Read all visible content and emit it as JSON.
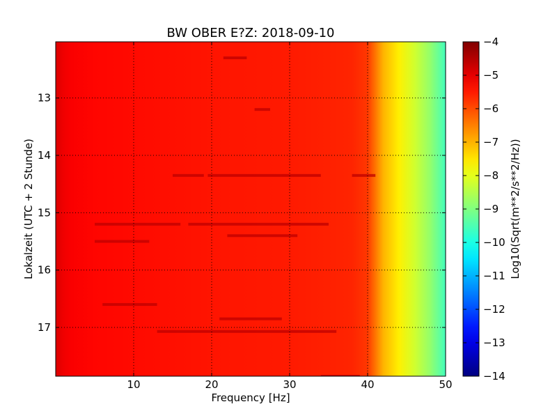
{
  "chart_data": {
    "type": "heatmap",
    "title": "BW OBER E?Z: 2018-09-10",
    "xlabel": "Frequency [Hz]",
    "ylabel": "Lokalzeit (UTC + 2 Stunde)",
    "xlim": [
      0,
      50
    ],
    "ylim": [
      12.02,
      17.85
    ],
    "y_inverted": true,
    "grid": true,
    "colormap": "jet",
    "x_ticks": [
      10,
      20,
      30,
      40,
      50
    ],
    "y_ticks": [
      13,
      14,
      15,
      16,
      17
    ],
    "colorbar": {
      "label": "Log10(Sqrt(m**2/s**2/Hz))",
      "vmin": -14,
      "vmax": -4,
      "ticks": [
        -4,
        -5,
        -6,
        -7,
        -8,
        -9,
        -10,
        -11,
        -12,
        -13,
        -14
      ]
    },
    "frequency_profile": {
      "x": [
        0,
        1,
        2,
        5,
        10,
        20,
        30,
        38,
        40,
        41,
        42,
        44,
        46,
        48,
        50
      ],
      "values": [
        -4.9,
        -5.1,
        -5.2,
        -5.3,
        -5.35,
        -5.45,
        -5.5,
        -5.6,
        -5.8,
        -6.4,
        -7.0,
        -7.6,
        -8.2,
        -8.8,
        -9.6
      ]
    },
    "dark_bands": [
      {
        "time": 12.3,
        "x_start": 21.5,
        "x_end": 24.5
      },
      {
        "time": 13.2,
        "x_start": 25.5,
        "x_end": 27.5
      },
      {
        "time": 14.35,
        "x_start": 38,
        "x_end": 41
      },
      {
        "time": 14.35,
        "x_start": 15,
        "x_end": 19
      },
      {
        "time": 14.35,
        "x_start": 19.5,
        "x_end": 34
      },
      {
        "time": 15.2,
        "x_start": 5,
        "x_end": 16
      },
      {
        "time": 15.2,
        "x_start": 17,
        "x_end": 35
      },
      {
        "time": 15.4,
        "x_start": 22,
        "x_end": 31
      },
      {
        "time": 15.5,
        "x_start": 5,
        "x_end": 12
      },
      {
        "time": 16.6,
        "x_start": 6,
        "x_end": 13
      },
      {
        "time": 16.85,
        "x_start": 21,
        "x_end": 29
      },
      {
        "time": 17.07,
        "x_start": 13,
        "x_end": 36
      },
      {
        "time": 17.85,
        "x_start": 34,
        "x_end": 39
      }
    ]
  }
}
